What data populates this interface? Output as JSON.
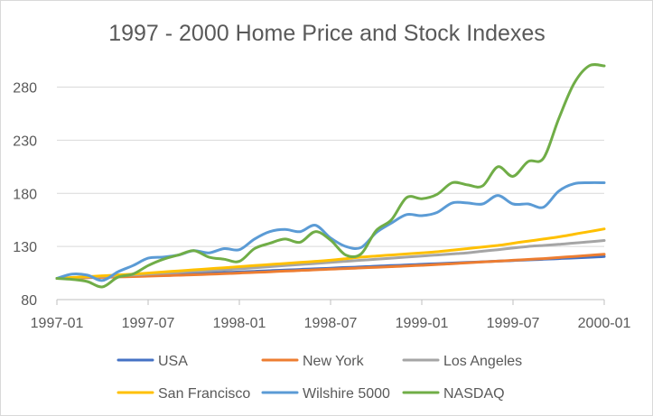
{
  "chart_data": {
    "type": "line",
    "title": "1997 - 2000 Home Price and Stock Indexes",
    "xlabel": "",
    "ylabel": "",
    "ylim": [
      80,
      300
    ],
    "yticks": [
      "80",
      "130",
      "180",
      "230",
      "280"
    ],
    "xticks": [
      "1997-01",
      "1997-07",
      "1998-01",
      "1998-07",
      "1999-01",
      "1999-07",
      "2000-01"
    ],
    "grid": true,
    "legend_position": "bottom",
    "x": [
      "1997-01",
      "1997-02",
      "1997-03",
      "1997-04",
      "1997-05",
      "1997-06",
      "1997-07",
      "1997-08",
      "1997-09",
      "1997-10",
      "1997-11",
      "1997-12",
      "1998-01",
      "1998-02",
      "1998-03",
      "1998-04",
      "1998-05",
      "1998-06",
      "1998-07",
      "1998-08",
      "1998-09",
      "1998-10",
      "1998-11",
      "1998-12",
      "1999-01",
      "1999-02",
      "1999-03",
      "1999-04",
      "1999-05",
      "1999-06",
      "1999-07",
      "1999-08",
      "1999-09",
      "1999-10",
      "1999-11",
      "1999-12",
      "2000-01"
    ],
    "series": [
      {
        "name": "USA",
        "color": "#4472c4",
        "values": [
          100,
          100.5,
          101,
          101.5,
          102,
          102.5,
          103,
          103.5,
          104,
          104.5,
          105,
          105.5,
          106,
          106.6,
          107.2,
          107.8,
          108.4,
          109,
          109.6,
          110.2,
          110.8,
          111.4,
          112,
          112.6,
          113.2,
          113.8,
          114.4,
          115,
          115.6,
          116.2,
          116.8,
          117.4,
          118,
          118.6,
          119.2,
          119.8,
          120.5
        ]
      },
      {
        "name": "New York",
        "color": "#ed7d31",
        "values": [
          100,
          100.3,
          100.6,
          100.9,
          101.3,
          101.7,
          102.1,
          102.5,
          102.9,
          103.4,
          103.9,
          104.4,
          105,
          105.6,
          106.2,
          106.8,
          107.4,
          108,
          108.6,
          109.2,
          109.8,
          110.4,
          111,
          111.6,
          112.3,
          113,
          113.8,
          114.6,
          115.4,
          116.2,
          117,
          117.8,
          118.6,
          119.6,
          120.6,
          121.6,
          122.6
        ]
      },
      {
        "name": "Los Angeles",
        "color": "#a5a5a5",
        "values": [
          100,
          100.6,
          101.2,
          101.8,
          102.5,
          103.2,
          104,
          104.8,
          105.6,
          106.4,
          107.2,
          108,
          109,
          110,
          111,
          112,
          113,
          114,
          115,
          116,
          117,
          118,
          119,
          120,
          121,
          122,
          123,
          124,
          125.5,
          127,
          128.5,
          130,
          131,
          132,
          133.2,
          134.4,
          135.6
        ]
      },
      {
        "name": "San Francisco",
        "color": "#ffc000",
        "values": [
          100,
          100.8,
          101.6,
          102.4,
          103.2,
          104,
          105,
          106,
          107,
          108,
          109,
          110,
          111,
          112,
          113,
          114,
          115,
          116,
          117,
          118.5,
          120,
          121,
          122,
          123,
          124,
          125,
          126.5,
          128,
          129.5,
          131,
          133,
          135,
          137,
          139,
          141.5,
          144,
          146.5
        ]
      },
      {
        "name": "Wilshire 5000",
        "color": "#5b9bd5",
        "values": [
          100,
          104,
          103,
          98,
          106,
          112,
          119,
          120,
          122,
          126,
          124,
          128,
          127,
          137,
          144,
          146,
          144,
          150,
          138,
          130,
          129,
          143,
          152,
          160,
          159,
          162,
          171,
          171,
          170,
          178,
          170,
          170,
          167,
          182,
          189,
          190,
          190
        ]
      },
      {
        "name": "NASDAQ",
        "color": "#70ad47",
        "values": [
          100,
          99,
          97,
          92,
          101,
          104,
          112,
          118,
          122,
          126,
          120,
          118,
          116,
          128,
          133,
          137,
          134,
          144,
          136,
          122,
          123,
          145,
          155,
          176,
          175,
          179,
          190,
          188,
          187,
          205,
          196,
          210,
          213,
          250,
          283,
          300,
          300
        ]
      }
    ]
  }
}
